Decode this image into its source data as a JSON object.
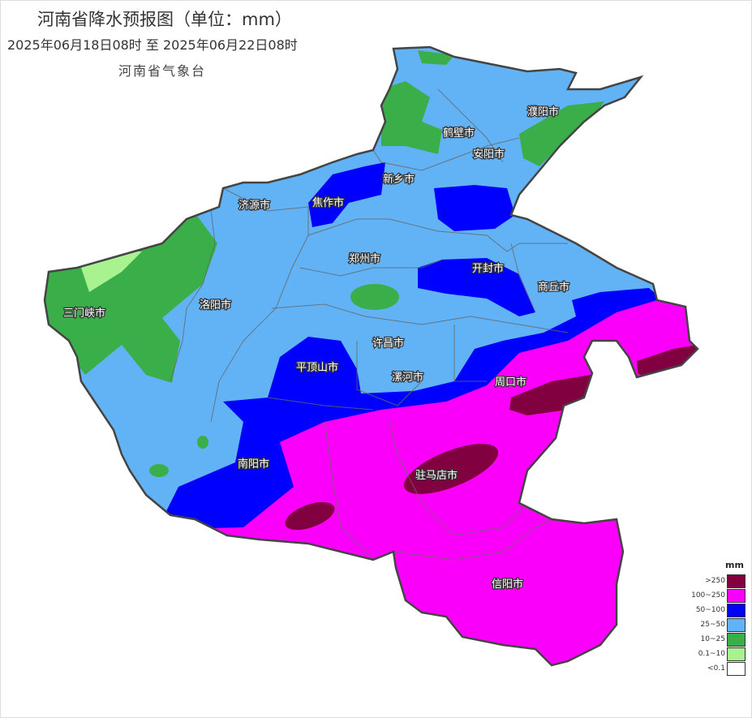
{
  "header": {
    "title": "河南省降水预报图（单位：mm）",
    "period": "2025年06月18日08时  至  2025年06月22日08时",
    "issuer": "河南省气象台"
  },
  "cities": [
    "濮阳市",
    "鹤壁市",
    "安阳市",
    "新乡市",
    "焦作市",
    "济源市",
    "郑州市",
    "开封市",
    "商丘市",
    "三门峡市",
    "洛阳市",
    "许昌市",
    "平顶山市",
    "漯河市",
    "周口市",
    "南阳市",
    "驻马店市",
    "信阳市"
  ],
  "legend": {
    "unit": "mm",
    "items": [
      {
        "label": ">250",
        "color": "#800040"
      },
      {
        "label": "100~250",
        "color": "#fa00fa"
      },
      {
        "label": "50~100",
        "color": "#0000fe"
      },
      {
        "label": "25~50",
        "color": "#62b2f6"
      },
      {
        "label": "10~25",
        "color": "#3aae48"
      },
      {
        "label": "0.1~10",
        "color": "#a8f290"
      },
      {
        "label": "<0.1",
        "color": "#ffffff"
      }
    ]
  }
}
